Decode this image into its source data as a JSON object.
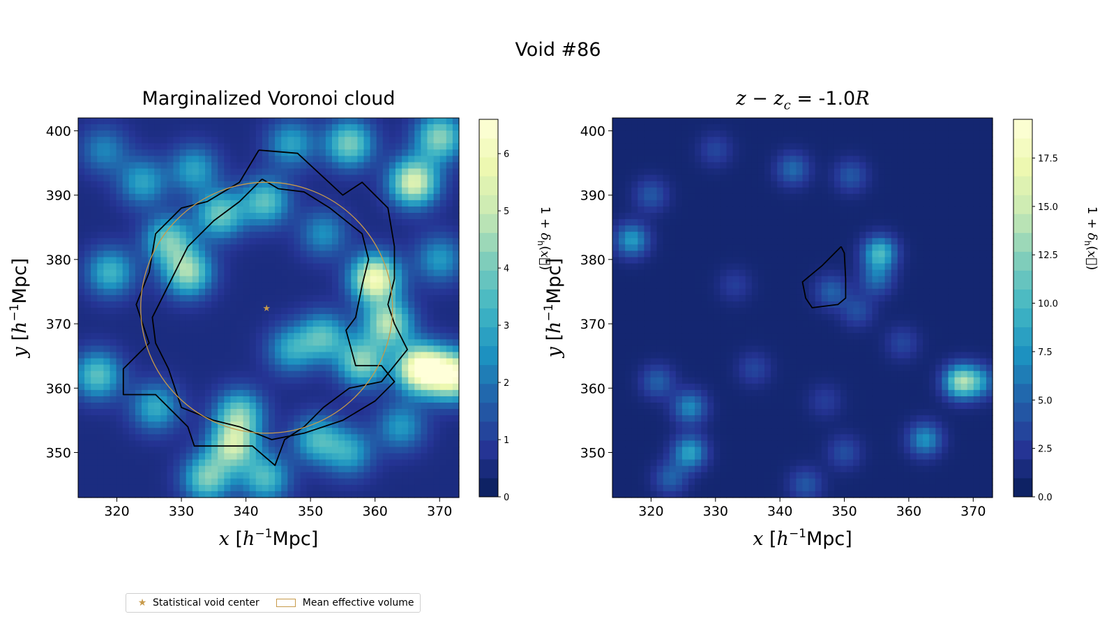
{
  "figure": {
    "title": "Void #86",
    "legend": [
      {
        "label": "Statistical void center",
        "marker": "star",
        "color": "#c79a4a"
      },
      {
        "label": "Mean effective volume",
        "marker": "box",
        "color": "#c79a4a"
      }
    ]
  },
  "chart_data": [
    {
      "type": "heatmap",
      "title": "Marginalized Voronoi cloud",
      "xlabel": "x [h⁻¹Mpc]",
      "ylabel": "y [h⁻¹Mpc]",
      "xlim": [
        314,
        373
      ],
      "ylim": [
        343,
        402
      ],
      "xticks": [
        320,
        330,
        340,
        350,
        360,
        370
      ],
      "yticks": [
        350,
        360,
        370,
        380,
        390,
        400
      ],
      "colormap": "YlGnBu",
      "colorbar": {
        "label": "1 + δh(x⃗)",
        "range": [
          0,
          6.6
        ],
        "ticks": [
          0,
          1,
          2,
          3,
          4,
          5,
          6
        ]
      },
      "void_center": [
        343.2,
        372.5
      ],
      "mean_effective_radius": 19.5,
      "outer_contour": [
        [
          342,
          397
        ],
        [
          348,
          396.5
        ],
        [
          355,
          390
        ],
        [
          358,
          392
        ],
        [
          362,
          388
        ],
        [
          363,
          382
        ],
        [
          363,
          377
        ],
        [
          362,
          373
        ],
        [
          363,
          370
        ],
        [
          365,
          366
        ],
        [
          361,
          361
        ],
        [
          356,
          360
        ],
        [
          352,
          357
        ],
        [
          349,
          354
        ],
        [
          346,
          352
        ],
        [
          344.5,
          348
        ],
        [
          341,
          351
        ],
        [
          332,
          351
        ],
        [
          331,
          354
        ],
        [
          326,
          359
        ],
        [
          321,
          359
        ],
        [
          321,
          363
        ],
        [
          325,
          367
        ],
        [
          323,
          373
        ],
        [
          325,
          378
        ],
        [
          326,
          384
        ],
        [
          330,
          388
        ],
        [
          334,
          389
        ],
        [
          339,
          392
        ],
        [
          342,
          397
        ]
      ],
      "inner_contour": [
        [
          342.5,
          392.5
        ],
        [
          345,
          391
        ],
        [
          349,
          390.5
        ],
        [
          353,
          388
        ],
        [
          358,
          384
        ],
        [
          359,
          380
        ],
        [
          358,
          376
        ],
        [
          357,
          371
        ],
        [
          355.5,
          369
        ],
        [
          357,
          363.5
        ],
        [
          361,
          363.5
        ],
        [
          363,
          361
        ],
        [
          360,
          358
        ],
        [
          355,
          355
        ],
        [
          349,
          353
        ],
        [
          344,
          352
        ],
        [
          339,
          354
        ],
        [
          335,
          355
        ],
        [
          330,
          357
        ],
        [
          328,
          363
        ],
        [
          326,
          367
        ],
        [
          325.5,
          371
        ],
        [
          327,
          374
        ],
        [
          329,
          378
        ],
        [
          331,
          382
        ],
        [
          335,
          386
        ],
        [
          339,
          389
        ],
        [
          342.5,
          392.5
        ]
      ],
      "blobs": [
        {
          "x": 324,
          "y": 392,
          "v": 2.6
        },
        {
          "x": 328,
          "y": 383,
          "v": 3.6
        },
        {
          "x": 331,
          "y": 378,
          "v": 4.2
        },
        {
          "x": 336,
          "y": 387,
          "v": 3.6
        },
        {
          "x": 332,
          "y": 394,
          "v": 2.6
        },
        {
          "x": 343,
          "y": 389,
          "v": 3.4
        },
        {
          "x": 356,
          "y": 398,
          "v": 3.8
        },
        {
          "x": 347,
          "y": 398,
          "v": 2.6
        },
        {
          "x": 366,
          "y": 392,
          "v": 5.2
        },
        {
          "x": 370,
          "y": 399,
          "v": 4.0
        },
        {
          "x": 360,
          "y": 377,
          "v": 5.8
        },
        {
          "x": 362,
          "y": 370,
          "v": 4.4
        },
        {
          "x": 358,
          "y": 364,
          "v": 4.0
        },
        {
          "x": 367,
          "y": 363,
          "v": 6.4
        },
        {
          "x": 372,
          "y": 362,
          "v": 6.0
        },
        {
          "x": 352,
          "y": 368,
          "v": 3.2
        },
        {
          "x": 347,
          "y": 366,
          "v": 2.6
        },
        {
          "x": 339,
          "y": 356,
          "v": 3.6
        },
        {
          "x": 338,
          "y": 351,
          "v": 4.4
        },
        {
          "x": 334,
          "y": 346,
          "v": 3.8
        },
        {
          "x": 343,
          "y": 346,
          "v": 3.2
        },
        {
          "x": 317,
          "y": 362,
          "v": 3.4
        },
        {
          "x": 319,
          "y": 378,
          "v": 3.0
        },
        {
          "x": 326,
          "y": 357,
          "v": 2.8
        },
        {
          "x": 351,
          "y": 352,
          "v": 3.0
        },
        {
          "x": 356,
          "y": 350,
          "v": 2.6
        },
        {
          "x": 364,
          "y": 354,
          "v": 2.4
        },
        {
          "x": 352,
          "y": 384,
          "v": 2.2
        },
        {
          "x": 318,
          "y": 397,
          "v": 2.0
        },
        {
          "x": 370,
          "y": 380,
          "v": 2.4
        }
      ]
    },
    {
      "type": "heatmap",
      "title_parts": {
        "lhs": "z − z",
        "sub": "c",
        "eq": " = -1.0",
        "unit": "R"
      },
      "xlabel": "x [h⁻¹Mpc]",
      "ylabel": "y [h⁻¹Mpc]",
      "xlim": [
        314,
        373
      ],
      "ylim": [
        343,
        402
      ],
      "xticks": [
        320,
        330,
        340,
        350,
        360,
        370
      ],
      "yticks": [
        350,
        360,
        370,
        380,
        390,
        400
      ],
      "colormap": "YlGnBu",
      "colorbar": {
        "label": "1 + δh(x⃗)",
        "range": [
          0,
          19.5
        ],
        "ticks": [
          0.0,
          2.5,
          5.0,
          7.5,
          10.0,
          12.5,
          15.0,
          17.5
        ]
      },
      "contour": [
        [
          349.5,
          382
        ],
        [
          350,
          381
        ],
        [
          350.2,
          377
        ],
        [
          350.2,
          374
        ],
        [
          349,
          373
        ],
        [
          345,
          372.5
        ],
        [
          344,
          374
        ],
        [
          343.5,
          376.5
        ],
        [
          346.5,
          379
        ],
        [
          349.5,
          382
        ]
      ],
      "blobs": [
        {
          "x": 317,
          "y": 383,
          "v": 7.5
        },
        {
          "x": 320,
          "y": 390,
          "v": 4.0
        },
        {
          "x": 326,
          "y": 357,
          "v": 6.5
        },
        {
          "x": 326,
          "y": 350,
          "v": 8.0
        },
        {
          "x": 323,
          "y": 346,
          "v": 4.5
        },
        {
          "x": 355.5,
          "y": 381,
          "v": 9.5
        },
        {
          "x": 355,
          "y": 377,
          "v": 5.0
        },
        {
          "x": 368,
          "y": 361,
          "v": 12.0
        },
        {
          "x": 371,
          "y": 361,
          "v": 6.0
        },
        {
          "x": 362.5,
          "y": 352,
          "v": 7.0
        },
        {
          "x": 342,
          "y": 394,
          "v": 5.0
        },
        {
          "x": 351,
          "y": 393,
          "v": 4.0
        },
        {
          "x": 348,
          "y": 375,
          "v": 4.5
        },
        {
          "x": 352,
          "y": 372,
          "v": 3.5
        },
        {
          "x": 321,
          "y": 361,
          "v": 4.5
        },
        {
          "x": 344,
          "y": 345,
          "v": 4.0
        },
        {
          "x": 350,
          "y": 350,
          "v": 3.5
        },
        {
          "x": 336,
          "y": 363,
          "v": 3.0
        },
        {
          "x": 333,
          "y": 376,
          "v": 2.5
        },
        {
          "x": 359,
          "y": 367,
          "v": 3.0
        },
        {
          "x": 347,
          "y": 358,
          "v": 2.5
        },
        {
          "x": 330,
          "y": 397,
          "v": 3.0
        }
      ]
    }
  ]
}
